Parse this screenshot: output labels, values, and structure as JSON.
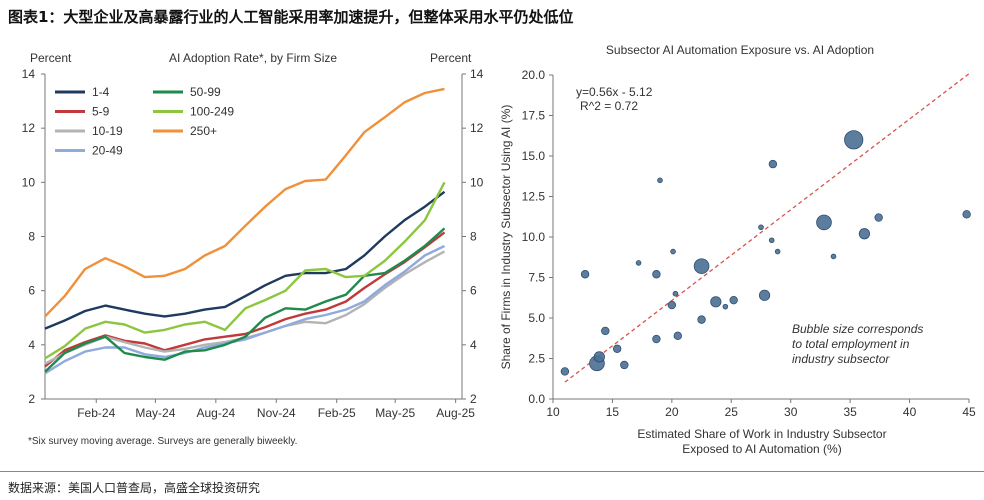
{
  "figure_title": "图表1：大型企业及高暴露行业的人工智能采用率加速提升，但整体采用水平仍处低位",
  "source": "数据来源：美国人口普查局，高盛全球投资研究",
  "chart_data": [
    {
      "type": "line",
      "title": "AI Adoption Rate*, by Firm Size",
      "ylabel_left": "Percent",
      "ylabel_right": "Percent",
      "footnote": "*Six survey moving average. Surveys are generally biweekly.",
      "ylim": [
        2,
        14
      ],
      "yticks": [
        "2",
        "4",
        "6",
        "8",
        "10",
        "12",
        "14"
      ],
      "xticks": [
        "Feb-24",
        "May-24",
        "Aug-24",
        "Nov-24",
        "Feb-25",
        "May-25",
        "Aug-25"
      ],
      "legend_position": "top-left",
      "grid": false,
      "x": [
        "2023-11-15",
        "2023-12-15",
        "2024-01-15",
        "2024-02-15",
        "2024-03-15",
        "2024-04-15",
        "2024-05-15",
        "2024-06-15",
        "2024-07-15",
        "2024-08-15",
        "2024-09-15",
        "2024-10-15",
        "2024-11-15",
        "2024-12-15",
        "2025-01-15",
        "2025-02-15",
        "2025-03-15",
        "2025-04-15",
        "2025-05-15",
        "2025-06-15",
        "2025-07-15"
      ],
      "series": [
        {
          "name": "1-4",
          "color": "#1f3a5f",
          "values": [
            4.6,
            4.9,
            5.25,
            5.45,
            5.3,
            5.15,
            5.05,
            5.15,
            5.3,
            5.4,
            5.8,
            6.2,
            6.55,
            6.65,
            6.65,
            6.8,
            7.3,
            8.0,
            8.6,
            9.1,
            9.65
          ]
        },
        {
          "name": "5-9",
          "color": "#c0393b",
          "values": [
            3.2,
            3.8,
            4.1,
            4.35,
            4.15,
            4.05,
            3.8,
            4.0,
            4.2,
            4.3,
            4.4,
            4.65,
            4.95,
            5.15,
            5.3,
            5.6,
            6.1,
            6.6,
            7.05,
            7.6,
            8.15
          ]
        },
        {
          "name": "10-19",
          "color": "#b3b3b3",
          "values": [
            3.3,
            3.7,
            4.0,
            4.3,
            4.1,
            3.9,
            3.75,
            3.85,
            4.0,
            4.1,
            4.25,
            4.45,
            4.7,
            4.85,
            4.8,
            5.1,
            5.5,
            6.1,
            6.6,
            7.05,
            7.45
          ]
        },
        {
          "name": "20-49",
          "color": "#8faadc",
          "values": [
            2.95,
            3.4,
            3.75,
            3.9,
            3.9,
            3.65,
            3.55,
            3.7,
            3.9,
            4.05,
            4.2,
            4.45,
            4.7,
            4.95,
            5.1,
            5.3,
            5.6,
            6.2,
            6.7,
            7.3,
            7.65
          ]
        },
        {
          "name": "50-99",
          "color": "#1e8a4c",
          "values": [
            3.0,
            3.7,
            4.05,
            4.3,
            3.7,
            3.55,
            3.45,
            3.75,
            3.8,
            4.0,
            4.3,
            5.0,
            5.35,
            5.3,
            5.6,
            5.85,
            6.55,
            6.65,
            7.1,
            7.65,
            8.3
          ]
        },
        {
          "name": "100-249",
          "color": "#8cc63f",
          "values": [
            3.5,
            3.95,
            4.6,
            4.85,
            4.75,
            4.45,
            4.55,
            4.75,
            4.85,
            4.55,
            5.35,
            5.65,
            6.0,
            6.75,
            6.8,
            6.5,
            6.55,
            7.1,
            7.8,
            8.6,
            10.0
          ]
        },
        {
          "name": "250+",
          "color": "#f0913a",
          "values": [
            5.05,
            5.8,
            6.8,
            7.2,
            6.9,
            6.5,
            6.55,
            6.8,
            7.3,
            7.65,
            8.4,
            9.1,
            9.75,
            10.05,
            10.1,
            11.0,
            11.85,
            12.4,
            12.95,
            13.3,
            13.45
          ]
        }
      ]
    },
    {
      "type": "scatter",
      "title": "Subsector AI Automation Exposure vs. AI Adoption",
      "xlabel": [
        "Estimated Share of Work in Industry Subsector",
        "Exposed to AI Automation (%)"
      ],
      "ylabel": "Share of Firms in Industry Subsector Using AI (%)",
      "xlim": [
        10,
        45
      ],
      "ylim": [
        0,
        20
      ],
      "xticks": [
        "10",
        "15",
        "20",
        "25",
        "30",
        "35",
        "40",
        "45"
      ],
      "yticks": [
        "0.0",
        "2.5",
        "5.0",
        "7.5",
        "10.0",
        "12.5",
        "15.0",
        "17.5",
        "20.0"
      ],
      "grid": false,
      "bubble_color": "#4a6f94",
      "trendline": {
        "slope": 0.56,
        "intercept": -5.12,
        "color": "#d9534f",
        "x_range": [
          11,
          45
        ]
      },
      "equation": "y=0.56x - 5.12",
      "r_squared": "R^2 =  0.72",
      "annotation": [
        "Bubble size corresponds",
        "to total employment in",
        "industry subsector"
      ],
      "points": [
        {
          "x": 11.0,
          "y": 1.7,
          "size": 2
        },
        {
          "x": 12.7,
          "y": 7.7,
          "size": 2
        },
        {
          "x": 13.7,
          "y": 2.2,
          "size": 4
        },
        {
          "x": 13.9,
          "y": 2.6,
          "size": 3
        },
        {
          "x": 14.4,
          "y": 4.2,
          "size": 2
        },
        {
          "x": 15.4,
          "y": 3.1,
          "size": 2
        },
        {
          "x": 16.0,
          "y": 2.1,
          "size": 2
        },
        {
          "x": 17.2,
          "y": 8.4,
          "size": 1
        },
        {
          "x": 18.7,
          "y": 7.7,
          "size": 2
        },
        {
          "x": 18.7,
          "y": 3.7,
          "size": 2
        },
        {
          "x": 19.0,
          "y": 13.5,
          "size": 1
        },
        {
          "x": 20.1,
          "y": 9.1,
          "size": 1
        },
        {
          "x": 20.0,
          "y": 5.8,
          "size": 2
        },
        {
          "x": 20.3,
          "y": 6.5,
          "size": 1
        },
        {
          "x": 20.5,
          "y": 3.9,
          "size": 2
        },
        {
          "x": 22.5,
          "y": 8.2,
          "size": 4
        },
        {
          "x": 22.5,
          "y": 4.9,
          "size": 2
        },
        {
          "x": 23.7,
          "y": 6.0,
          "size": 3
        },
        {
          "x": 24.5,
          "y": 5.7,
          "size": 1
        },
        {
          "x": 25.2,
          "y": 6.1,
          "size": 2
        },
        {
          "x": 27.5,
          "y": 10.6,
          "size": 1
        },
        {
          "x": 27.8,
          "y": 6.4,
          "size": 3
        },
        {
          "x": 28.4,
          "y": 9.8,
          "size": 1
        },
        {
          "x": 28.5,
          "y": 14.5,
          "size": 2
        },
        {
          "x": 28.9,
          "y": 9.1,
          "size": 1
        },
        {
          "x": 32.8,
          "y": 10.9,
          "size": 4
        },
        {
          "x": 33.6,
          "y": 8.8,
          "size": 1
        },
        {
          "x": 35.3,
          "y": 16.0,
          "size": 5
        },
        {
          "x": 36.2,
          "y": 10.2,
          "size": 3
        },
        {
          "x": 37.4,
          "y": 11.2,
          "size": 2
        },
        {
          "x": 44.8,
          "y": 11.4,
          "size": 2
        }
      ]
    }
  ]
}
